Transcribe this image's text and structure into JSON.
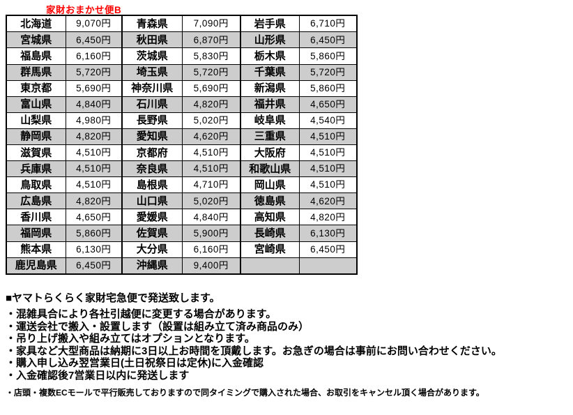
{
  "title": "家財おまかせ便B",
  "table": {
    "rows": [
      {
        "cells": [
          "北海道",
          "9,070円",
          "青森県",
          "7,090円",
          "岩手県",
          "6,710円"
        ]
      },
      {
        "cells": [
          "宮城県",
          "6,450円",
          "秋田県",
          "6,870円",
          "山形県",
          "6,450円"
        ]
      },
      {
        "cells": [
          "福島県",
          "6,160円",
          "茨城県",
          "5,830円",
          "栃木県",
          "5,860円"
        ]
      },
      {
        "cells": [
          "群馬県",
          "5,720円",
          "埼玉県",
          "5,720円",
          "千葉県",
          "5,720円"
        ]
      },
      {
        "cells": [
          "東京都",
          "5,690円",
          "神奈川県",
          "5,690円",
          "新潟県",
          "5,860円"
        ]
      },
      {
        "cells": [
          "富山県",
          "4,840円",
          "石川県",
          "4,820円",
          "福井県",
          "4,650円"
        ]
      },
      {
        "cells": [
          "山梨県",
          "4,980円",
          "長野県",
          "5,020円",
          "岐阜県",
          "4,540円"
        ]
      },
      {
        "cells": [
          "静岡県",
          "4,820円",
          "愛知県",
          "4,620円",
          "三重県",
          "4,510円"
        ]
      },
      {
        "cells": [
          "滋賀県",
          "4,510円",
          "京都府",
          "4,510円",
          "大阪府",
          "4,510円"
        ]
      },
      {
        "cells": [
          "兵庫県",
          "4,510円",
          "奈良県",
          "4,510円",
          "和歌山県",
          "4,510円"
        ]
      },
      {
        "cells": [
          "鳥取県",
          "4,510円",
          "島根県",
          "4,710円",
          "岡山県",
          "4,510円"
        ]
      },
      {
        "cells": [
          "広島県",
          "4,820円",
          "山口県",
          "5,020円",
          "徳島県",
          "4,620円"
        ]
      },
      {
        "cells": [
          "香川県",
          "4,650円",
          "愛媛県",
          "4,840円",
          "高知県",
          "4,820円"
        ]
      },
      {
        "cells": [
          "福岡県",
          "5,860円",
          "佐賀県",
          "5,900円",
          "長崎県",
          "6,130円"
        ]
      },
      {
        "cells": [
          "熊本県",
          "6,130円",
          "大分県",
          "6,160円",
          "宮崎県",
          "6,450円"
        ]
      },
      {
        "cells": [
          "鹿児島県",
          "6,450円",
          "沖縄県",
          "9,400円",
          "",
          ""
        ]
      }
    ]
  },
  "notes": {
    "heading": "■ヤマトらくらく家財宅急便で発送致します。",
    "bullets": [
      "・混雑具合により各社引越便に変更する場合があります。",
      "・運送会社で搬入・設置します（設置は組み立て済み商品のみ）",
      "・吊り上げ搬入や組み立てはオプションとなります。",
      "・家具など大型商品は納期に3日以上お時間を頂戴します。お急ぎの場合は事前にお問い合わせください。",
      "・購入申し込み翌営業日(土日祝祭日は定休)に入金確認",
      "・入金確認後7営業日以内に発送します"
    ],
    "small_note": "・店頭・複数ECモールで平行販売しておりますので同タイミングで購入された場合、お取引をキャンセル頂く場合があります。"
  },
  "colors": {
    "title_red": "#ff0000",
    "shaded_row": "#cdcdcd",
    "border": "#000000"
  }
}
